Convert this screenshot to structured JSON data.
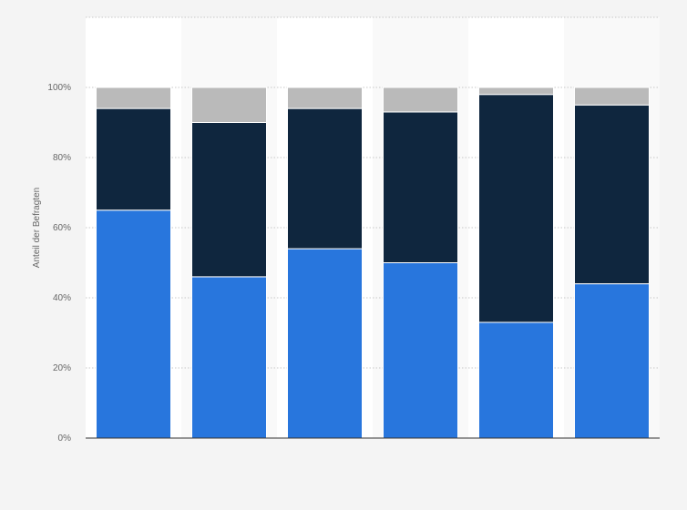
{
  "chart_data": {
    "type": "bar",
    "stacked": true,
    "categories": [
      "",
      "",
      "",
      "",
      "",
      ""
    ],
    "series": [
      {
        "values": [
          65,
          46,
          54,
          50,
          33,
          44
        ],
        "color": "#2876dd"
      },
      {
        "values": [
          29,
          44,
          40,
          43,
          65,
          51
        ],
        "color": "#0f263e"
      },
      {
        "values": [
          6,
          10,
          6,
          7,
          2,
          5
        ],
        "color": "#bababa"
      }
    ],
    "ylabel": "Anteil der Befragten",
    "ylim": [
      0,
      120
    ],
    "yticks": [
      {
        "value": 0,
        "label": "0%"
      },
      {
        "value": 20,
        "label": "20%"
      },
      {
        "value": 40,
        "label": "40%"
      },
      {
        "value": 60,
        "label": "60%"
      },
      {
        "value": 80,
        "label": "80%"
      },
      {
        "value": 100,
        "label": "100%"
      }
    ],
    "grid": true,
    "legend": "none"
  }
}
